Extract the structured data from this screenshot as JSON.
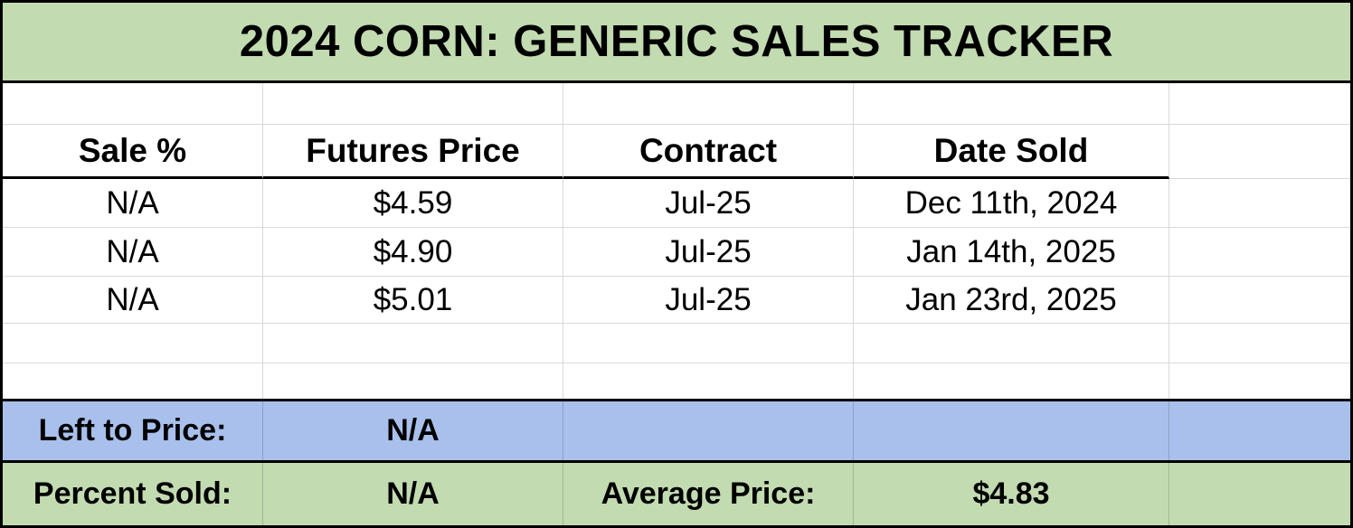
{
  "title": "2024 CORN: GENERIC SALES TRACKER",
  "columns": [
    "Sale %",
    "Futures Price",
    "Contract",
    "Date Sold",
    ""
  ],
  "rows": [
    [
      "N/A",
      "$4.59",
      "Jul-25",
      "Dec 11th, 2024",
      ""
    ],
    [
      "N/A",
      "$4.90",
      "Jul-25",
      "Jan 14th, 2025",
      ""
    ],
    [
      "N/A",
      "$5.01",
      "Jul-25",
      "Jan 23rd, 2025",
      ""
    ],
    [
      "",
      "",
      "",
      "",
      ""
    ],
    [
      "",
      "",
      "",
      "",
      ""
    ]
  ],
  "summary": {
    "left_to_price_label": "Left to Price:",
    "left_to_price_value": "N/A",
    "percent_sold_label": "Percent Sold:",
    "percent_sold_value": "N/A",
    "average_price_label": "Average Price:",
    "average_price_value": "$4.83"
  },
  "colors": {
    "title_green": "#c2dbb1",
    "summary_green": "#c2dbb1",
    "summary_blue": "#a9c0ec",
    "grid_line": "#d9d9d9",
    "border": "#000000",
    "text": "#000000"
  }
}
